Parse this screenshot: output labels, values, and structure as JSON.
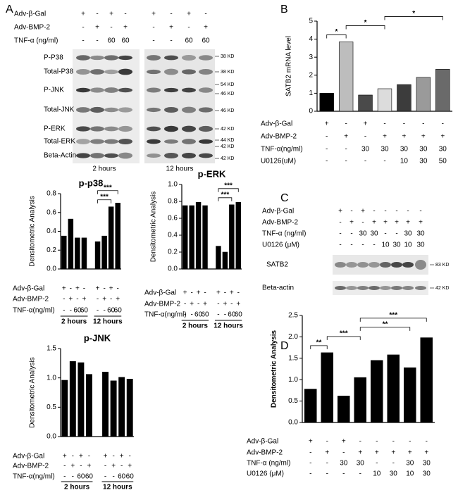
{
  "panel_labels": [
    "A",
    "B",
    "C",
    "D"
  ],
  "blot_A": {
    "conditions": [
      {
        "label": "Adv-β-Gal",
        "values": [
          "+",
          "-",
          "+",
          "-",
          "+",
          "-",
          "+",
          "-"
        ]
      },
      {
        "label": "Adv-BMP-2",
        "values": [
          "-",
          "+",
          "-",
          "+",
          "-",
          "+",
          "-",
          "+"
        ]
      },
      {
        "label": "TNF-α (ng/ml)",
        "values": [
          "-",
          "-",
          "60",
          "60",
          "-",
          "-",
          "60",
          "60"
        ]
      }
    ],
    "rows": [
      "P-P38",
      "Total-P38",
      "P-JNK",
      "Total-JNK",
      "P-ERK",
      "Total-ERK",
      "Beta-Actin"
    ],
    "markers": [
      "38 KD",
      "38 KD",
      "54 KD",
      "46 KD",
      "46 KD",
      "42 KD",
      "44 KD",
      "42 KD",
      "42 KD"
    ],
    "times": [
      "2 hours",
      "12 hours"
    ]
  },
  "blot_C": {
    "conditions": [
      {
        "label": "Adv-β-Gal",
        "values": [
          "+",
          "-",
          "+",
          "-",
          "-",
          "-",
          "-",
          "-"
        ]
      },
      {
        "label": "Adv-BMP-2",
        "values": [
          "-",
          "+",
          "-",
          "+",
          "+",
          "+",
          "+",
          "+"
        ]
      },
      {
        "label": "TNF-α (ng/ml)",
        "values": [
          "-",
          "-",
          "30",
          "30",
          "-",
          "-",
          "30",
          "30"
        ]
      },
      {
        "label": "U0126 (μM)",
        "values": [
          "-",
          "-",
          "-",
          "-",
          "10",
          "30",
          "10",
          "30"
        ]
      }
    ],
    "rows": [
      "SATB2",
      "Beta-actin"
    ],
    "markers": [
      "83 KD",
      "42 KD"
    ]
  },
  "chart_data": [
    {
      "type": "bar",
      "title": "p-p38",
      "y_label": "Densitometric Analysis",
      "color": "#000000",
      "values": [
        0.35,
        0.53,
        0.33,
        0.33,
        0.29,
        0.35,
        0.66,
        0.7
      ],
      "ylim": [
        0,
        0.8
      ],
      "yticks": [
        {
          "value": 0,
          "label": "0.0"
        },
        0.2,
        0.4,
        0.6,
        0.8
      ],
      "conditions": [
        {
          "label": "Adv-β-Gal",
          "values": [
            "+",
            "-",
            "+",
            "-",
            "+",
            "-",
            "+",
            "-"
          ]
        },
        {
          "label": "Adv-BMP-2",
          "values": [
            "-",
            "+",
            "-",
            "+",
            "-",
            "+",
            "-",
            "+"
          ]
        },
        {
          "label": "TNF-α(ng/ml)",
          "values": [
            "-",
            "-",
            "60",
            "60",
            "-",
            "-",
            "60",
            "60"
          ]
        }
      ],
      "groups": [
        "2 hours",
        "12 hours"
      ],
      "annotations": [
        {
          "text": "***",
          "from": 4,
          "to": 6
        },
        {
          "text": "***",
          "from": 4,
          "to": 7
        }
      ]
    },
    {
      "type": "bar",
      "title": "p-ERK",
      "y_label": "Densitometric Analysis",
      "color": "#000000",
      "values": [
        0.75,
        0.75,
        0.79,
        0.75,
        0.27,
        0.2,
        0.76,
        0.79
      ],
      "ylim": [
        0,
        1.0
      ],
      "yticks": [
        {
          "value": 0,
          "label": "0.0"
        },
        0.2,
        0.4,
        0.6,
        0.8,
        {
          "value": 1,
          "label": "1.0"
        }
      ],
      "conditions": [
        {
          "label": "Adv-β-Gal",
          "values": [
            "+",
            "-",
            "+",
            "-",
            "+",
            "-",
            "+",
            "-"
          ]
        },
        {
          "label": "Adv-BMP-2",
          "values": [
            "-",
            "+",
            "-",
            "+",
            "-",
            "+",
            "-",
            "+"
          ]
        },
        {
          "label": "TNF-α(ng/ml)",
          "values": [
            "-",
            "-",
            "60",
            "60",
            "-",
            "-",
            "60",
            "60"
          ]
        }
      ],
      "groups": [
        "2 hours",
        "12 hours"
      ],
      "annotations": [
        {
          "text": "***",
          "from": 4,
          "to": 6
        },
        {
          "text": "***",
          "from": 4,
          "to": 7
        }
      ]
    },
    {
      "type": "bar",
      "title": "p-JNK",
      "y_label": "Densitometric Analysis",
      "color": "#000000",
      "values": [
        0.96,
        1.28,
        1.26,
        1.06,
        1.1,
        0.95,
        1.01,
        0.98
      ],
      "ylim": [
        0,
        1.5
      ],
      "yticks": [
        {
          "value": 0,
          "label": "0.0"
        },
        0.5,
        {
          "value": 1,
          "label": "1.0"
        },
        1.5
      ],
      "conditions": [
        {
          "label": "Adv-β-Gal",
          "values": [
            "+",
            "-",
            "+",
            "-",
            "+",
            "-",
            "+",
            "-"
          ]
        },
        {
          "label": "Adv-BMP-2",
          "values": [
            "-",
            "+",
            "-",
            "+",
            "-",
            "+",
            "-",
            "+"
          ]
        },
        {
          "label": "TNF-α(ng/ml)",
          "values": [
            "-",
            "-",
            "60",
            "60",
            "-",
            "-",
            "60",
            "60"
          ]
        }
      ],
      "groups": [
        "2 hours",
        "12 hours"
      ],
      "annotations": []
    },
    {
      "type": "bar",
      "title": null,
      "y_label": "SATB2 mRNA level",
      "colors": [
        "#000000",
        "#bdbdbd",
        "#4a4a4a",
        "#dcdcdc",
        "#3c3c3c",
        "#9a9a9a",
        "#6a6a6a"
      ],
      "values": [
        1.0,
        3.85,
        0.9,
        1.25,
        1.48,
        1.88,
        2.33
      ],
      "ylim": [
        0,
        5
      ],
      "yticks": [
        0,
        1,
        2,
        3,
        4,
        5
      ],
      "conditions": [
        {
          "label": "Adv-β-Gal",
          "values": [
            "+",
            "-",
            "+",
            "-",
            "-",
            "-",
            "-"
          ]
        },
        {
          "label": "Adv-BMP-2",
          "values": [
            "-",
            "+",
            "-",
            "+",
            "+",
            "+",
            "+"
          ]
        },
        {
          "label": "TNF-α(ng/ml)",
          "values": [
            "-",
            "-",
            "30",
            "30",
            "30",
            "30",
            "30"
          ]
        },
        {
          "label": "U0126(uM)",
          "values": [
            "-",
            "-",
            "-",
            "-",
            "10",
            "30",
            "50"
          ]
        }
      ],
      "annotations": [
        {
          "text": "*",
          "from": 0,
          "to": 1
        },
        {
          "text": "*",
          "from": 1,
          "to": 3
        },
        {
          "text": "*",
          "from": 3,
          "to": 6
        }
      ]
    },
    {
      "type": "bar",
      "title": null,
      "y_label": "Densitometric Analysis",
      "color": "#000000",
      "values": [
        0.78,
        1.63,
        0.62,
        1.05,
        1.45,
        1.58,
        1.28,
        1.98
      ],
      "ylim": [
        0,
        2.5
      ],
      "yticks": [
        {
          "value": 0,
          "label": "0.0"
        },
        0.5,
        {
          "value": 1,
          "label": "1.0"
        },
        1.5,
        {
          "value": 2,
          "label": "2.0"
        },
        2.5
      ],
      "conditions": [
        {
          "label": "Adv-β-Gal",
          "values": [
            "+",
            "-",
            "+",
            "-",
            "-",
            "-",
            "-",
            "-"
          ]
        },
        {
          "label": "Adv-BMP-2",
          "values": [
            "-",
            "+",
            "-",
            "+",
            "+",
            "+",
            "+",
            "+"
          ]
        },
        {
          "label": "TNF-α (ng/ml)",
          "values": [
            "-",
            "-",
            "30",
            "30",
            "-",
            "-",
            "30",
            "30"
          ]
        },
        {
          "label": "U0126 (μM)",
          "values": [
            "-",
            "-",
            "-",
            "-",
            "10",
            "30",
            "10",
            "30"
          ]
        }
      ],
      "annotations": [
        {
          "text": "**",
          "from": 0,
          "to": 1
        },
        {
          "text": "***",
          "from": 1,
          "to": 3
        },
        {
          "text": "**",
          "from": 3,
          "to": 6
        },
        {
          "text": "***",
          "from": 3,
          "to": 7
        }
      ]
    }
  ]
}
